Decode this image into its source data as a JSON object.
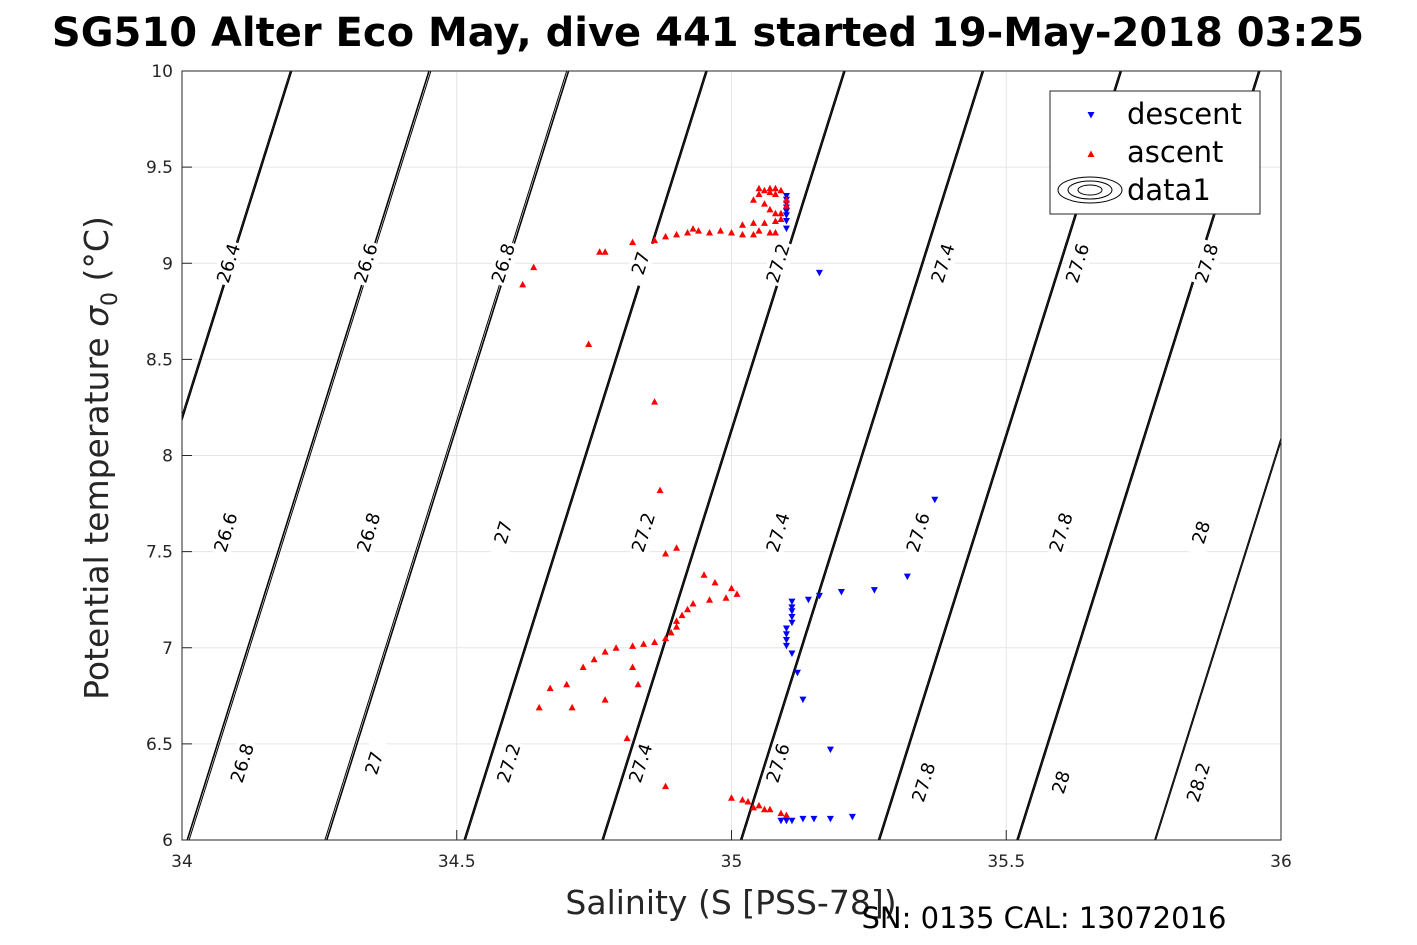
{
  "chart_data": {
    "type": "scatter",
    "title": "SG510 Alter Eco May, dive 441 started 19-May-2018 03:25",
    "xlabel": "Salinity (S [PSS-78])",
    "ylabel_main": "Potential temperature ",
    "ylabel_symbol": "σ",
    "ylabel_sub": "0",
    "ylabel_unit": " (°C)",
    "footnote": "SN: 0135  CAL: 13072016",
    "xlim": [
      34,
      36
    ],
    "ylim": [
      6,
      10
    ],
    "xticks": [
      "34",
      "34.5",
      "35",
      "35.5",
      "36"
    ],
    "yticks": [
      "6",
      "6.5",
      "7",
      "7.5",
      "8",
      "8.5",
      "9",
      "9.5",
      "10"
    ],
    "grid": true,
    "legend": {
      "position": "top-right",
      "entries": [
        "descent",
        "ascent",
        "data1"
      ]
    },
    "contours": {
      "levels": [
        26.4,
        26.6,
        26.8,
        27.0,
        27.2,
        27.4,
        27.6,
        27.8,
        28.0,
        28.2
      ],
      "labels": [
        {
          "text": "26.4",
          "s": 34.085,
          "t": 9.0
        },
        {
          "text": "26.6",
          "s": 34.335,
          "t": 9.0
        },
        {
          "text": "26.8",
          "s": 34.585,
          "t": 9.0
        },
        {
          "text": "27",
          "s": 34.835,
          "t": 9.0
        },
        {
          "text": "27.2",
          "s": 35.085,
          "t": 9.0
        },
        {
          "text": "27.4",
          "s": 35.385,
          "t": 9.0
        },
        {
          "text": "27.6",
          "s": 35.63,
          "t": 9.0
        },
        {
          "text": "27.8",
          "s": 35.865,
          "t": 9.0
        },
        {
          "text": "26.6",
          "s": 34.08,
          "t": 7.6
        },
        {
          "text": "26.8",
          "s": 34.34,
          "t": 7.6
        },
        {
          "text": "27",
          "s": 34.585,
          "t": 7.6
        },
        {
          "text": "27.2",
          "s": 34.84,
          "t": 7.6
        },
        {
          "text": "27.4",
          "s": 35.085,
          "t": 7.6
        },
        {
          "text": "27.6",
          "s": 35.34,
          "t": 7.6
        },
        {
          "text": "27.8",
          "s": 35.6,
          "t": 7.6
        },
        {
          "text": "28",
          "s": 35.855,
          "t": 7.6
        },
        {
          "text": "26.8",
          "s": 34.11,
          "t": 6.4
        },
        {
          "text": "27",
          "s": 34.35,
          "t": 6.4
        },
        {
          "text": "27.2",
          "s": 34.595,
          "t": 6.4
        },
        {
          "text": "27.4",
          "s": 34.835,
          "t": 6.4
        },
        {
          "text": "27.6",
          "s": 35.085,
          "t": 6.4
        },
        {
          "text": "27.8",
          "s": 35.35,
          "t": 6.3
        },
        {
          "text": "28",
          "s": 35.6,
          "t": 6.3
        },
        {
          "text": "28.2",
          "s": 35.85,
          "t": 6.3
        }
      ]
    },
    "series": [
      {
        "name": "descent",
        "color": "#0000ff",
        "marker": "triangle-down",
        "points": [
          [
            35.1,
            9.35
          ],
          [
            35.1,
            9.33
          ],
          [
            35.1,
            9.31
          ],
          [
            35.1,
            9.29
          ],
          [
            35.1,
            9.27
          ],
          [
            35.1,
            9.25
          ],
          [
            35.1,
            9.22
          ],
          [
            35.1,
            9.18
          ],
          [
            35.16,
            8.95
          ],
          [
            35.37,
            7.77
          ],
          [
            35.32,
            7.37
          ],
          [
            35.26,
            7.3
          ],
          [
            35.2,
            7.29
          ],
          [
            35.16,
            7.27
          ],
          [
            35.14,
            7.25
          ],
          [
            35.11,
            7.24
          ],
          [
            35.11,
            7.21
          ],
          [
            35.11,
            7.19
          ],
          [
            35.11,
            7.16
          ],
          [
            35.11,
            7.13
          ],
          [
            35.1,
            7.1
          ],
          [
            35.1,
            7.07
          ],
          [
            35.1,
            7.04
          ],
          [
            35.1,
            7.01
          ],
          [
            35.11,
            6.97
          ],
          [
            35.12,
            6.87
          ],
          [
            35.13,
            6.73
          ],
          [
            35.18,
            6.47
          ],
          [
            35.22,
            6.12
          ],
          [
            35.18,
            6.11
          ],
          [
            35.15,
            6.11
          ],
          [
            35.13,
            6.11
          ],
          [
            35.11,
            6.1
          ],
          [
            35.1,
            6.1
          ],
          [
            35.09,
            6.1
          ]
        ]
      },
      {
        "name": "ascent",
        "color": "#ff0000",
        "marker": "triangle-up",
        "points": [
          [
            35.09,
            9.38
          ],
          [
            35.08,
            9.39
          ],
          [
            35.07,
            9.39
          ],
          [
            35.06,
            9.38
          ],
          [
            35.05,
            9.36
          ],
          [
            35.04,
            9.33
          ],
          [
            35.06,
            9.31
          ],
          [
            35.07,
            9.28
          ],
          [
            35.09,
            9.26
          ],
          [
            35.09,
            9.23
          ],
          [
            35.08,
            9.22
          ],
          [
            35.06,
            9.21
          ],
          [
            35.04,
            9.21
          ],
          [
            35.02,
            9.2
          ],
          [
            35.08,
            9.26
          ],
          [
            35.1,
            9.3
          ],
          [
            35.1,
            9.33
          ],
          [
            35.08,
            9.36
          ],
          [
            35.07,
            9.37
          ],
          [
            35.05,
            9.39
          ],
          [
            35.05,
            9.17
          ],
          [
            35.07,
            9.16
          ],
          [
            35.08,
            9.16
          ],
          [
            35.04,
            9.15
          ],
          [
            35.02,
            9.15
          ],
          [
            35.0,
            9.16
          ],
          [
            34.98,
            9.17
          ],
          [
            34.96,
            9.16
          ],
          [
            34.94,
            9.17
          ],
          [
            34.93,
            9.18
          ],
          [
            34.92,
            9.16
          ],
          [
            34.9,
            9.15
          ],
          [
            34.88,
            9.14
          ],
          [
            34.86,
            9.12
          ],
          [
            34.82,
            9.11
          ],
          [
            34.77,
            9.06
          ],
          [
            34.76,
            9.06
          ],
          [
            34.64,
            8.98
          ],
          [
            34.62,
            8.89
          ],
          [
            34.74,
            8.58
          ],
          [
            34.86,
            8.28
          ],
          [
            34.87,
            7.82
          ],
          [
            34.88,
            7.49
          ],
          [
            34.9,
            7.52
          ],
          [
            34.95,
            7.38
          ],
          [
            34.97,
            7.34
          ],
          [
            35.0,
            7.31
          ],
          [
            35.01,
            7.28
          ],
          [
            34.99,
            7.26
          ],
          [
            34.96,
            7.25
          ],
          [
            34.93,
            7.23
          ],
          [
            34.92,
            7.2
          ],
          [
            34.91,
            7.17
          ],
          [
            34.9,
            7.14
          ],
          [
            34.9,
            7.11
          ],
          [
            34.89,
            7.08
          ],
          [
            34.88,
            7.05
          ],
          [
            34.86,
            7.03
          ],
          [
            34.84,
            7.02
          ],
          [
            34.82,
            7.01
          ],
          [
            34.79,
            7.0
          ],
          [
            34.77,
            6.98
          ],
          [
            34.75,
            6.94
          ],
          [
            34.73,
            6.9
          ],
          [
            34.7,
            6.81
          ],
          [
            34.67,
            6.79
          ],
          [
            34.65,
            6.69
          ],
          [
            34.71,
            6.69
          ],
          [
            34.77,
            6.73
          ],
          [
            34.82,
            6.9
          ],
          [
            34.83,
            6.81
          ],
          [
            34.81,
            6.53
          ],
          [
            34.88,
            6.28
          ],
          [
            35.0,
            6.22
          ],
          [
            35.02,
            6.21
          ],
          [
            35.03,
            6.2
          ],
          [
            35.05,
            6.18
          ],
          [
            35.07,
            6.16
          ],
          [
            35.09,
            6.14
          ],
          [
            35.1,
            6.13
          ],
          [
            35.04,
            6.17
          ],
          [
            35.06,
            6.16
          ]
        ]
      }
    ]
  }
}
